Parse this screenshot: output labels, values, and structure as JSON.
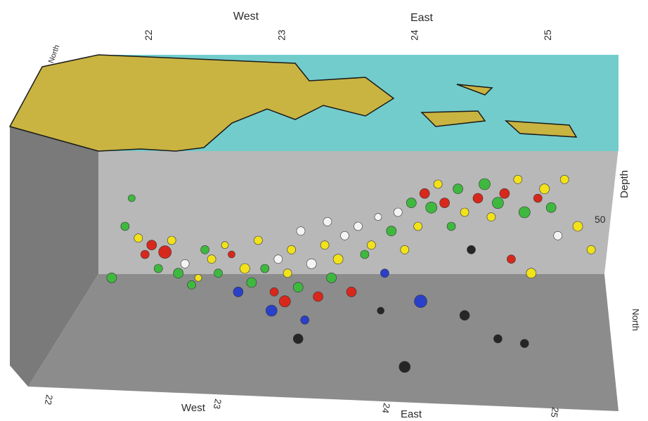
{
  "chart_data": {
    "type": "scatter",
    "xlabel_top_left": "West",
    "xlabel_top_right": "East",
    "xlabel_bottom_left": "West",
    "xlabel_bottom_right": "East",
    "right_axis_label": "Depth",
    "right_axis_tick": "50",
    "back_axis_label": "North",
    "right_lower_label": "North",
    "x_ticks_top": [
      "22",
      "23",
      "24",
      "25"
    ],
    "x_ticks_bottom": [
      "22",
      "23",
      "24",
      "25"
    ],
    "xlim": [
      21.6,
      25.4
    ],
    "depth_range": [
      0,
      90
    ],
    "categories": [
      "green",
      "yellow",
      "red",
      "white",
      "blue",
      "black"
    ],
    "colors": {
      "green": "#3fb83f",
      "yellow": "#f2e21a",
      "red": "#d8281c",
      "white": "#f4f4f4",
      "blue": "#2a40c8",
      "black": "#262626",
      "sea": "#72cccc",
      "land": "#c9b441",
      "back_wall": "#b8b8b8",
      "side_wall": "#7a7a7a",
      "floor": "#8c8c8c"
    },
    "points": [
      {
        "x": 21.7,
        "d": 52,
        "c": "green",
        "s": 7
      },
      {
        "x": 21.8,
        "d": 30,
        "c": "green",
        "s": 6
      },
      {
        "x": 21.85,
        "d": 18,
        "c": "green",
        "s": 5
      },
      {
        "x": 21.9,
        "d": 35,
        "c": "yellow",
        "s": 6
      },
      {
        "x": 21.95,
        "d": 42,
        "c": "red",
        "s": 6
      },
      {
        "x": 22.0,
        "d": 38,
        "c": "red",
        "s": 7
      },
      {
        "x": 22.05,
        "d": 48,
        "c": "green",
        "s": 6
      },
      {
        "x": 22.1,
        "d": 41,
        "c": "red",
        "s": 9
      },
      {
        "x": 22.15,
        "d": 36,
        "c": "yellow",
        "s": 6
      },
      {
        "x": 22.2,
        "d": 50,
        "c": "green",
        "s": 7
      },
      {
        "x": 22.25,
        "d": 46,
        "c": "white",
        "s": 6
      },
      {
        "x": 22.3,
        "d": 55,
        "c": "green",
        "s": 6
      },
      {
        "x": 22.35,
        "d": 52,
        "c": "yellow",
        "s": 5
      },
      {
        "x": 22.4,
        "d": 40,
        "c": "green",
        "s": 6
      },
      {
        "x": 22.45,
        "d": 44,
        "c": "yellow",
        "s": 6
      },
      {
        "x": 22.5,
        "d": 50,
        "c": "green",
        "s": 6
      },
      {
        "x": 22.55,
        "d": 38,
        "c": "yellow",
        "s": 5
      },
      {
        "x": 22.6,
        "d": 42,
        "c": "red",
        "s": 5
      },
      {
        "x": 22.65,
        "d": 58,
        "c": "blue",
        "s": 7
      },
      {
        "x": 22.7,
        "d": 48,
        "c": "yellow",
        "s": 7
      },
      {
        "x": 22.75,
        "d": 54,
        "c": "green",
        "s": 7
      },
      {
        "x": 22.8,
        "d": 36,
        "c": "yellow",
        "s": 6
      },
      {
        "x": 22.85,
        "d": 48,
        "c": "green",
        "s": 6
      },
      {
        "x": 22.9,
        "d": 66,
        "c": "blue",
        "s": 8
      },
      {
        "x": 22.92,
        "d": 58,
        "c": "red",
        "s": 6
      },
      {
        "x": 22.95,
        "d": 44,
        "c": "white",
        "s": 6
      },
      {
        "x": 23.0,
        "d": 62,
        "c": "red",
        "s": 8
      },
      {
        "x": 23.02,
        "d": 50,
        "c": "yellow",
        "s": 6
      },
      {
        "x": 23.05,
        "d": 40,
        "c": "yellow",
        "s": 6
      },
      {
        "x": 23.1,
        "d": 56,
        "c": "green",
        "s": 7
      },
      {
        "x": 23.12,
        "d": 32,
        "c": "white",
        "s": 6
      },
      {
        "x": 23.15,
        "d": 70,
        "c": "blue",
        "s": 6
      },
      {
        "x": 23.2,
        "d": 46,
        "c": "white",
        "s": 7
      },
      {
        "x": 23.25,
        "d": 60,
        "c": "red",
        "s": 7
      },
      {
        "x": 23.3,
        "d": 38,
        "c": "yellow",
        "s": 6
      },
      {
        "x": 23.32,
        "d": 28,
        "c": "white",
        "s": 6
      },
      {
        "x": 23.35,
        "d": 52,
        "c": "green",
        "s": 7
      },
      {
        "x": 23.4,
        "d": 44,
        "c": "yellow",
        "s": 7
      },
      {
        "x": 23.45,
        "d": 34,
        "c": "white",
        "s": 6
      },
      {
        "x": 23.5,
        "d": 58,
        "c": "red",
        "s": 7
      },
      {
        "x": 23.55,
        "d": 30,
        "c": "white",
        "s": 6
      },
      {
        "x": 23.6,
        "d": 42,
        "c": "green",
        "s": 6
      },
      {
        "x": 23.65,
        "d": 38,
        "c": "yellow",
        "s": 6
      },
      {
        "x": 23.7,
        "d": 26,
        "c": "white",
        "s": 5
      },
      {
        "x": 23.72,
        "d": 66,
        "c": "black",
        "s": 5
      },
      {
        "x": 23.75,
        "d": 50,
        "c": "blue",
        "s": 6
      },
      {
        "x": 23.8,
        "d": 32,
        "c": "green",
        "s": 7
      },
      {
        "x": 23.85,
        "d": 24,
        "c": "white",
        "s": 6
      },
      {
        "x": 23.9,
        "d": 40,
        "c": "yellow",
        "s": 6
      },
      {
        "x": 23.95,
        "d": 20,
        "c": "green",
        "s": 7
      },
      {
        "x": 24.0,
        "d": 30,
        "c": "yellow",
        "s": 6
      },
      {
        "x": 24.02,
        "d": 62,
        "c": "blue",
        "s": 9
      },
      {
        "x": 24.05,
        "d": 16,
        "c": "red",
        "s": 7
      },
      {
        "x": 24.1,
        "d": 22,
        "c": "green",
        "s": 8
      },
      {
        "x": 24.15,
        "d": 12,
        "c": "yellow",
        "s": 6
      },
      {
        "x": 24.2,
        "d": 20,
        "c": "red",
        "s": 7
      },
      {
        "x": 24.25,
        "d": 30,
        "c": "green",
        "s": 6
      },
      {
        "x": 24.3,
        "d": 14,
        "c": "green",
        "s": 7
      },
      {
        "x": 24.35,
        "d": 24,
        "c": "yellow",
        "s": 6
      },
      {
        "x": 24.4,
        "d": 40,
        "c": "black",
        "s": 6
      },
      {
        "x": 24.45,
        "d": 18,
        "c": "red",
        "s": 7
      },
      {
        "x": 24.5,
        "d": 12,
        "c": "green",
        "s": 8
      },
      {
        "x": 24.55,
        "d": 26,
        "c": "yellow",
        "s": 6
      },
      {
        "x": 24.6,
        "d": 20,
        "c": "green",
        "s": 8
      },
      {
        "x": 24.65,
        "d": 16,
        "c": "red",
        "s": 7
      },
      {
        "x": 24.7,
        "d": 44,
        "c": "red",
        "s": 6
      },
      {
        "x": 24.75,
        "d": 10,
        "c": "yellow",
        "s": 6
      },
      {
        "x": 24.8,
        "d": 24,
        "c": "green",
        "s": 8
      },
      {
        "x": 24.85,
        "d": 50,
        "c": "yellow",
        "s": 7
      },
      {
        "x": 24.9,
        "d": 18,
        "c": "red",
        "s": 6
      },
      {
        "x": 24.95,
        "d": 14,
        "c": "yellow",
        "s": 7
      },
      {
        "x": 25.0,
        "d": 22,
        "c": "green",
        "s": 7
      },
      {
        "x": 25.05,
        "d": 34,
        "c": "white",
        "s": 6
      },
      {
        "x": 25.1,
        "d": 10,
        "c": "yellow",
        "s": 6
      },
      {
        "x": 25.2,
        "d": 30,
        "c": "yellow",
        "s": 7
      },
      {
        "x": 25.3,
        "d": 40,
        "c": "yellow",
        "s": 6
      },
      {
        "x": 23.1,
        "d": 78,
        "c": "black",
        "s": 7
      },
      {
        "x": 24.35,
        "d": 68,
        "c": "black",
        "s": 7
      },
      {
        "x": 24.6,
        "d": 78,
        "c": "black",
        "s": 6
      },
      {
        "x": 24.8,
        "d": 80,
        "c": "black",
        "s": 6
      },
      {
        "x": 23.9,
        "d": 90,
        "c": "black",
        "s": 8
      }
    ]
  }
}
